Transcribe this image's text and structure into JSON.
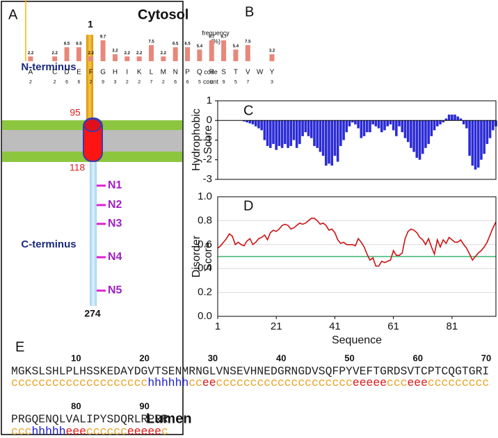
{
  "panel_a": {
    "label": "A",
    "top_label": "Cytosol",
    "bottom_label": "Lumen",
    "n_terminus": "N-terminus",
    "c_terminus": "C-terminus",
    "start": 1,
    "tm_start": 95,
    "tm_end": 118,
    "end": 274,
    "sites": [
      "N1",
      "N2",
      "N3",
      "N4",
      "N5"
    ]
  },
  "chart_data": [
    {
      "type": "bar",
      "panel": "B",
      "ylabel": [
        "frequency",
        "(%)"
      ],
      "category_label": "code",
      "count_label": "count",
      "categories": [
        "A",
        null,
        "C",
        "D",
        "E",
        "F",
        "G",
        "H",
        "I",
        "K",
        "L",
        "M",
        "N",
        "P",
        "Q",
        "R",
        "S",
        "T",
        "V",
        "W",
        "Y"
      ],
      "values": [
        2.2,
        null,
        2.2,
        6.5,
        6.5,
        2.2,
        9.7,
        3.2,
        2.2,
        2.2,
        7.5,
        2.2,
        6.5,
        6.5,
        5.4,
        9.7,
        9.7,
        5.4,
        7.5,
        null,
        3.2
      ],
      "counts": [
        2,
        null,
        2,
        6,
        6,
        2,
        9,
        3,
        2,
        2,
        7,
        2,
        6,
        6,
        5,
        9,
        9,
        5,
        7,
        null,
        3
      ],
      "color": "#e8877a",
      "axis_color": "#f5b400",
      "ylim": [
        0,
        11
      ]
    },
    {
      "type": "bar",
      "panel": "C",
      "ylabel": [
        "Hydrophobic",
        "Score"
      ],
      "x": [
        1,
        2,
        3,
        4,
        5,
        6,
        7,
        8,
        9,
        10,
        11,
        12,
        13,
        14,
        15,
        16,
        17,
        18,
        19,
        20,
        21,
        22,
        23,
        24,
        25,
        26,
        27,
        28,
        29,
        30,
        31,
        32,
        33,
        34,
        35,
        36,
        37,
        38,
        39,
        40,
        41,
        42,
        43,
        44,
        45,
        46,
        47,
        48,
        49,
        50,
        51,
        52,
        53,
        54,
        55,
        56,
        57,
        58,
        59,
        60,
        61,
        62,
        63,
        64,
        65,
        66,
        67,
        68,
        69,
        70,
        71,
        72,
        73,
        74,
        75,
        76,
        77,
        78,
        79,
        80,
        81,
        82,
        83,
        84,
        85,
        86,
        87,
        88,
        89,
        90,
        91,
        92,
        93,
        94,
        95,
        96
      ],
      "values": [
        0,
        0,
        0,
        0,
        0,
        0,
        0,
        0,
        0,
        -0.05,
        -0.1,
        -0.15,
        -0.2,
        -0.3,
        -0.4,
        -0.5,
        -1.0,
        -1.3,
        -1.4,
        -1.2,
        -1.5,
        -1.3,
        -1.4,
        -1.2,
        -1.4,
        -1.3,
        -1.0,
        -1.4,
        -1.2,
        -0.8,
        -0.6,
        -0.8,
        -0.9,
        -1.3,
        -1.4,
        -1.6,
        -1.8,
        -2.3,
        -2.2,
        -2.3,
        -1.8,
        -2.1,
        -1.3,
        -1.0,
        -0.6,
        -0.3,
        -0.1,
        -0.2,
        -0.4,
        -0.9,
        -0.8,
        -0.6,
        -0.6,
        -0.2,
        -0.3,
        -0.4,
        -0.6,
        -0.5,
        -0.3,
        -0.2,
        -0.5,
        -0.8,
        -0.3,
        -0.6,
        -0.9,
        -1.1,
        -1.4,
        -1.6,
        -1.9,
        -2.0,
        -1.7,
        -1.4,
        -1.2,
        -0.8,
        -0.5,
        -0.3,
        -0.2,
        -0.1,
        0.1,
        0.3,
        0.3,
        0.3,
        0.2,
        0.1,
        -0.2,
        -0.4,
        -1.8,
        -2.3,
        -2.5,
        -2.4,
        -2.0,
        -1.7,
        -1.2,
        -0.9,
        -0.5,
        -0.3
      ],
      "color": "#2b2bd6",
      "xlim": [
        1,
        96
      ],
      "ylim": [
        -3,
        1
      ],
      "yticks": [
        -3,
        -2,
        -1,
        0,
        1
      ]
    },
    {
      "type": "line",
      "panel": "D",
      "xlabel": "Sequence",
      "ylabel": [
        "Disorder",
        "Score"
      ],
      "x": [
        1,
        2,
        3,
        4,
        5,
        6,
        7,
        8,
        9,
        10,
        11,
        12,
        13,
        14,
        15,
        16,
        17,
        18,
        19,
        20,
        21,
        22,
        23,
        24,
        25,
        26,
        27,
        28,
        29,
        30,
        31,
        32,
        33,
        34,
        35,
        36,
        37,
        38,
        39,
        40,
        41,
        42,
        43,
        44,
        45,
        46,
        47,
        48,
        49,
        50,
        51,
        52,
        53,
        54,
        55,
        56,
        57,
        58,
        59,
        60,
        61,
        62,
        63,
        64,
        65,
        66,
        67,
        68,
        69,
        70,
        71,
        72,
        73,
        74,
        75,
        76,
        77,
        78,
        79,
        80,
        81,
        82,
        83,
        84,
        85,
        86,
        87,
        88,
        89,
        90,
        91,
        92,
        93,
        94,
        95,
        96
      ],
      "values": [
        0.57,
        0.59,
        0.62,
        0.65,
        0.69,
        0.67,
        0.6,
        0.62,
        0.6,
        0.59,
        0.63,
        0.65,
        0.6,
        0.62,
        0.65,
        0.66,
        0.68,
        0.64,
        0.7,
        0.72,
        0.71,
        0.73,
        0.76,
        0.77,
        0.76,
        0.73,
        0.74,
        0.76,
        0.78,
        0.77,
        0.78,
        0.8,
        0.82,
        0.82,
        0.8,
        0.77,
        0.78,
        0.76,
        0.72,
        0.73,
        0.7,
        0.64,
        0.61,
        0.62,
        0.6,
        0.6,
        0.6,
        0.59,
        0.65,
        0.62,
        0.58,
        0.52,
        0.47,
        0.49,
        0.42,
        0.42,
        0.46,
        0.45,
        0.46,
        0.47,
        0.55,
        0.51,
        0.51,
        0.53,
        0.65,
        0.71,
        0.73,
        0.72,
        0.7,
        0.66,
        0.64,
        0.6,
        0.65,
        0.58,
        0.52,
        0.64,
        0.58,
        0.64,
        0.61,
        0.66,
        0.64,
        0.62,
        0.62,
        0.64,
        0.6,
        0.57,
        0.52,
        0.47,
        0.5,
        0.53,
        0.55,
        0.58,
        0.62,
        0.68,
        0.74,
        0.79
      ],
      "color": "#cc1111",
      "threshold": 0.5,
      "threshold_color": "#3cb371",
      "xlim": [
        1,
        96
      ],
      "ylim": [
        0,
        1
      ],
      "xticks": [
        1,
        21,
        41,
        61,
        81
      ],
      "yticks": [
        {
          "value": 0,
          "label": "0.0"
        },
        0.2,
        0.4,
        0.6,
        0.8,
        {
          "value": 1,
          "label": "1.0"
        }
      ],
      "grid": true
    }
  ],
  "sequence_panel": {
    "label": "E",
    "lines": [
      {
        "ruler": [
          10,
          20,
          30,
          40,
          50,
          60,
          70
        ],
        "sequence": "MGKSLSHLPLHSSKEDAYDGVTSENMRNGLVNSEVHNEDGRNGDVSQFPYVEFTGRDSVTCPTCQGTGRI",
        "structure": "cccccccccccccccccccchhhhhhcceecccccccccccccccccccceeeeeccceeeccccccccc"
      },
      {
        "ruler": [
          80,
          90
        ],
        "sequence": "PRGQENQLVALIPYSDQRLRPRR",
        "structure": "ccchhhhheeecccccceeeeec"
      }
    ],
    "colors": {
      "c": "#e8a020",
      "h": "#1a1ad0",
      "e": "#e01818"
    }
  }
}
